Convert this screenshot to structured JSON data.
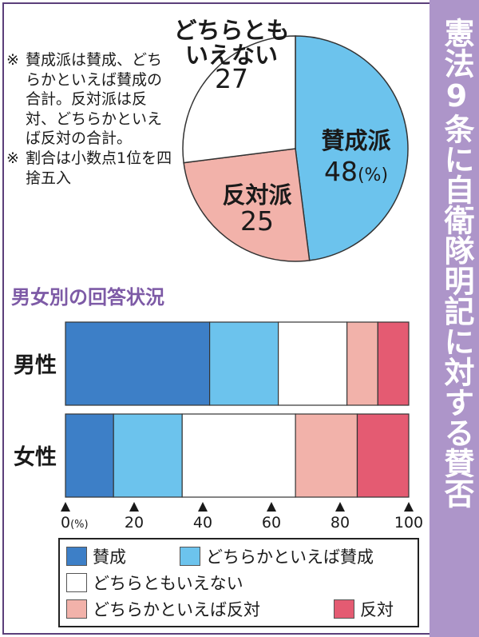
{
  "title": "憲法9条に自衛隊明記に対する賛否",
  "notes": [
    {
      "mark": "※",
      "text": "賛成派は賛成、どちらかといえば賛成の合計。反対派は反対、どちらかといえば反対の合計。"
    },
    {
      "mark": "※",
      "text": "割合は小数点1位を四捨五入"
    }
  ],
  "section_title": "男女別の回答状況",
  "colors": {
    "strong_agree": "#3d7fc7",
    "agree": "#6cc3ed",
    "neutral": "#ffffff",
    "disagree": "#f2b2aa",
    "strong_disagree": "#e45b72"
  },
  "chart_data": [
    {
      "type": "pie",
      "slices": [
        {
          "label_lines": [
            "賛成派"
          ],
          "value": 48,
          "value_text": "48",
          "unit": "(%)",
          "color": "#6cc3ed"
        },
        {
          "label_lines": [
            "反対派"
          ],
          "value": 25,
          "value_text": "25",
          "unit": "",
          "color": "#f2b2aa"
        },
        {
          "label_lines": [
            "どちらとも",
            "いえない"
          ],
          "value": 27,
          "value_text": "27",
          "unit": "",
          "color": "#ffffff"
        }
      ]
    },
    {
      "type": "bar",
      "orientation": "horizontal",
      "stacked": true,
      "categories": [
        "男性",
        "女性"
      ],
      "xlim": [
        0,
        100
      ],
      "x_ticks": [
        {
          "value": 0,
          "label": "0",
          "suffix": "(%)"
        },
        {
          "value": 20,
          "label": "20",
          "suffix": ""
        },
        {
          "value": 40,
          "label": "40",
          "suffix": ""
        },
        {
          "value": 60,
          "label": "60",
          "suffix": ""
        },
        {
          "value": 80,
          "label": "80",
          "suffix": ""
        },
        {
          "value": 100,
          "label": "100",
          "suffix": ""
        }
      ],
      "series": [
        {
          "name": "賛成",
          "color": "#3d7fc7",
          "values": [
            42,
            14
          ]
        },
        {
          "name": "どちらかといえば賛成",
          "color": "#6cc3ed",
          "values": [
            20,
            20
          ]
        },
        {
          "name": "どちらともいえない",
          "color": "#ffffff",
          "values": [
            20,
            33
          ]
        },
        {
          "name": "どちらかといえば反対",
          "color": "#f2b2aa",
          "values": [
            9,
            18
          ]
        },
        {
          "name": "反対",
          "color": "#e45b72",
          "values": [
            9,
            15
          ]
        }
      ]
    }
  ]
}
